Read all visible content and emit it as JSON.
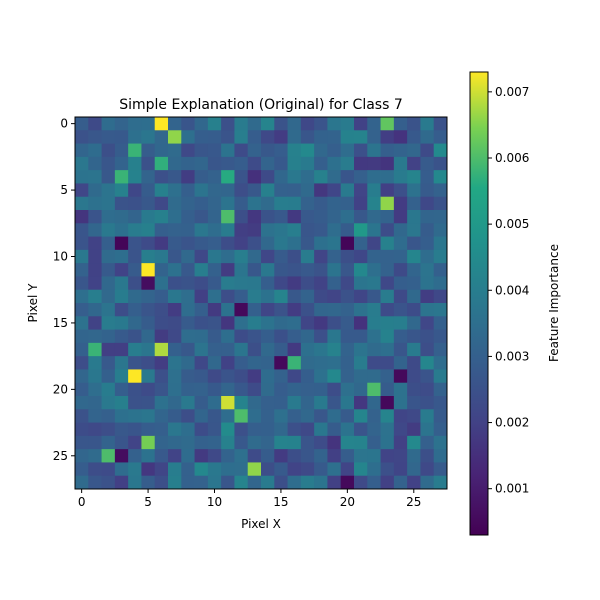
{
  "chart_data": {
    "type": "heatmap",
    "title": "Simple Explanation (Original) for Class 7",
    "xlabel": "Pixel X",
    "ylabel": "Pixel Y",
    "rows": 28,
    "cols": 28,
    "colormap": "viridis",
    "xlim": [
      -0.5,
      27.5
    ],
    "ylim": [
      27.5,
      -0.5
    ],
    "xticks": [
      0,
      5,
      10,
      15,
      20,
      25
    ],
    "yticks": [
      0,
      5,
      10,
      15,
      20,
      25
    ],
    "colorbar": {
      "label": "Feature Importance",
      "vmin": 0.0003,
      "vmax": 0.0073,
      "ticks": [
        0.001,
        0.002,
        0.003,
        0.004,
        0.005,
        0.006,
        0.007
      ]
    },
    "highlights": [
      {
        "row": 0,
        "col": 6,
        "value": 0.0073
      },
      {
        "row": 0,
        "col": 23,
        "value": 0.0062
      },
      {
        "row": 1,
        "col": 7,
        "value": 0.0066
      },
      {
        "row": 2,
        "col": 4,
        "value": 0.0058
      },
      {
        "row": 3,
        "col": 6,
        "value": 0.0057
      },
      {
        "row": 4,
        "col": 3,
        "value": 0.0058
      },
      {
        "row": 4,
        "col": 11,
        "value": 0.0056
      },
      {
        "row": 6,
        "col": 23,
        "value": 0.0066
      },
      {
        "row": 7,
        "col": 11,
        "value": 0.006
      },
      {
        "row": 8,
        "col": 21,
        "value": 0.005
      },
      {
        "row": 9,
        "col": 3,
        "value": 0.0004
      },
      {
        "row": 9,
        "col": 20,
        "value": 0.0004
      },
      {
        "row": 11,
        "col": 5,
        "value": 0.0073
      },
      {
        "row": 12,
        "col": 5,
        "value": 0.0006
      },
      {
        "row": 14,
        "col": 12,
        "value": 0.0005
      },
      {
        "row": 17,
        "col": 1,
        "value": 0.0058
      },
      {
        "row": 17,
        "col": 6,
        "value": 0.0068
      },
      {
        "row": 18,
        "col": 15,
        "value": 0.0005
      },
      {
        "row": 18,
        "col": 16,
        "value": 0.0058
      },
      {
        "row": 19,
        "col": 4,
        "value": 0.0073
      },
      {
        "row": 19,
        "col": 24,
        "value": 0.0005
      },
      {
        "row": 20,
        "col": 22,
        "value": 0.006
      },
      {
        "row": 21,
        "col": 11,
        "value": 0.007
      },
      {
        "row": 21,
        "col": 23,
        "value": 0.0005
      },
      {
        "row": 22,
        "col": 12,
        "value": 0.006
      },
      {
        "row": 24,
        "col": 5,
        "value": 0.0064
      },
      {
        "row": 25,
        "col": 2,
        "value": 0.006
      },
      {
        "row": 25,
        "col": 3,
        "value": 0.0006
      },
      {
        "row": 26,
        "col": 13,
        "value": 0.0066
      },
      {
        "row": 27,
        "col": 20,
        "value": 0.0005
      }
    ],
    "background_seed": 7,
    "background_range": [
      0.0015,
      0.0045
    ]
  }
}
